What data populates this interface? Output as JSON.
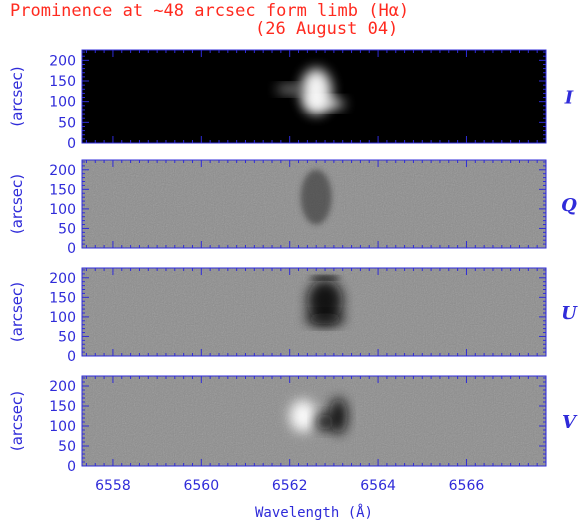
{
  "title_line1": "Prominence at ~48 arcsec form limb (Hα)",
  "title_line2": "(26 August 04)",
  "colors": {
    "title": "#ff2a1f",
    "axis": "#2f2bd9"
  },
  "chart_data": {
    "type": "heatmap",
    "title": "Prominence at ~48 arcsec form limb (Hα) (26 August 04)",
    "xlabel": "Wavelength (Å)",
    "xlim": [
      6557.3,
      6567.8
    ],
    "x_ticks": [
      6558,
      6560,
      6562,
      6564,
      6566
    ],
    "panels": [
      {
        "stokes": "I",
        "ylabel": "(arcsec)",
        "ylim": [
          0,
          225
        ],
        "y_ticks": [
          0,
          50,
          100,
          150,
          200
        ],
        "background": "black",
        "features": [
          {
            "kind": "emission",
            "tone": "bright",
            "x_center": 6562.6,
            "x_halfwidth": 0.35,
            "y_center": 125,
            "y_halfheight": 55
          },
          {
            "kind": "emission",
            "tone": "bright",
            "x_center": 6562.8,
            "x_halfwidth": 0.45,
            "y_center": 95,
            "y_halfheight": 12
          },
          {
            "kind": "emission",
            "tone": "faint",
            "x_center": 6562.0,
            "x_halfwidth": 0.3,
            "y_center": 130,
            "y_halfheight": 10
          }
        ]
      },
      {
        "stokes": "Q",
        "ylabel": "(arcsec)",
        "ylim": [
          0,
          225
        ],
        "y_ticks": [
          0,
          50,
          100,
          150,
          200
        ],
        "background": "gray",
        "features": [
          {
            "kind": "speckle",
            "tone": "mixed",
            "x_center": 6562.6,
            "x_halfwidth": 0.35,
            "y_center": 130,
            "y_halfheight": 70
          }
        ]
      },
      {
        "stokes": "U",
        "ylabel": "(arcsec)",
        "ylim": [
          0,
          225
        ],
        "y_ticks": [
          0,
          50,
          100,
          150,
          200
        ],
        "background": "gray",
        "features": [
          {
            "kind": "absorption",
            "tone": "dark",
            "x_center": 6562.8,
            "x_halfwidth": 0.4,
            "y_center": 140,
            "y_halfheight": 55
          },
          {
            "kind": "absorption",
            "tone": "dark",
            "x_center": 6562.8,
            "x_halfwidth": 0.45,
            "y_center": 95,
            "y_halfheight": 15
          },
          {
            "kind": "line",
            "tone": "dark",
            "x_center": 6562.8,
            "x_halfwidth": 0.35,
            "y_center": 200,
            "y_halfheight": 2
          }
        ]
      },
      {
        "stokes": "V",
        "ylabel": "(arcsec)",
        "ylim": [
          0,
          225
        ],
        "y_ticks": [
          0,
          50,
          100,
          150,
          200
        ],
        "background": "gray",
        "features": [
          {
            "kind": "lobe",
            "tone": "bright",
            "x_center": 6562.3,
            "x_halfwidth": 0.3,
            "y_center": 125,
            "y_halfheight": 40
          },
          {
            "kind": "lobe",
            "tone": "dark",
            "x_center": 6563.1,
            "x_halfwidth": 0.2,
            "y_center": 125,
            "y_halfheight": 45
          },
          {
            "kind": "lobe",
            "tone": "dark",
            "x_center": 6562.8,
            "x_halfwidth": 0.2,
            "y_center": 110,
            "y_halfheight": 20
          }
        ]
      }
    ]
  }
}
